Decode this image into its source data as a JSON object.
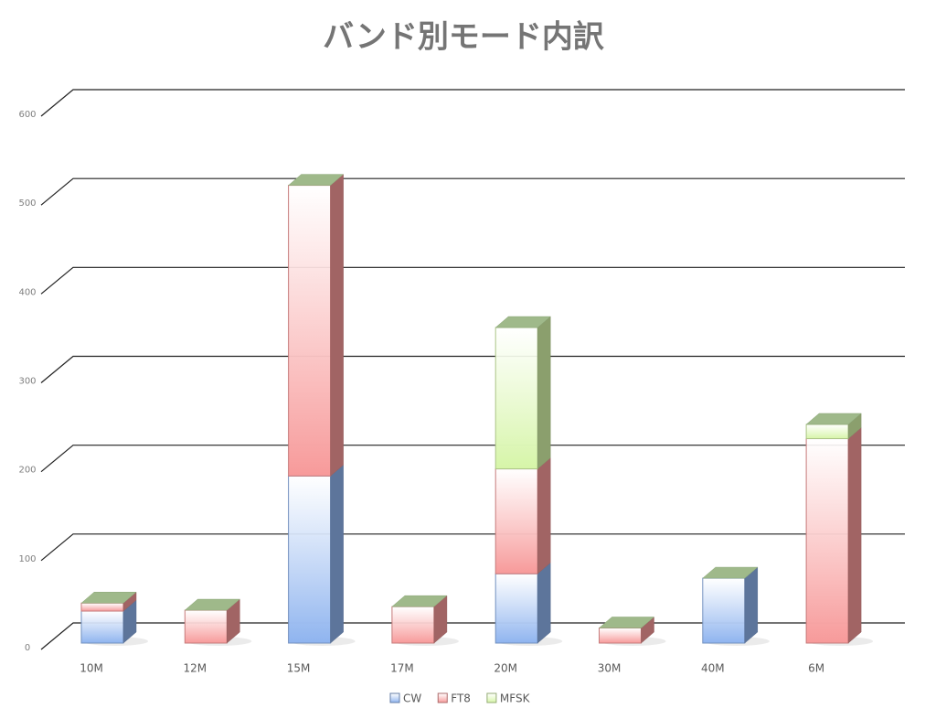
{
  "chart_data": {
    "type": "bar3d-stacked",
    "title": "バンド別モード内訳",
    "categories": [
      "10M",
      "12M",
      "15M",
      "17M",
      "20M",
      "30M",
      "40M",
      "6M"
    ],
    "series": [
      {
        "name": "CW",
        "color": "#8fb4ef",
        "values": [
          36,
          null,
          188,
          null,
          78,
          null,
          73,
          null
        ]
      },
      {
        "name": "FT8",
        "color": "#f79a9a",
        "values": [
          9,
          37,
          327,
          41,
          118,
          17,
          null,
          230
        ]
      },
      {
        "name": "MFSK",
        "color": "#d6f5a8",
        "values": [
          null,
          null,
          null,
          null,
          159,
          null,
          null,
          16
        ]
      }
    ],
    "ylim": [
      0,
      600
    ],
    "yticks": [
      0,
      100,
      200,
      300,
      400,
      500,
      600
    ],
    "grid": true
  }
}
